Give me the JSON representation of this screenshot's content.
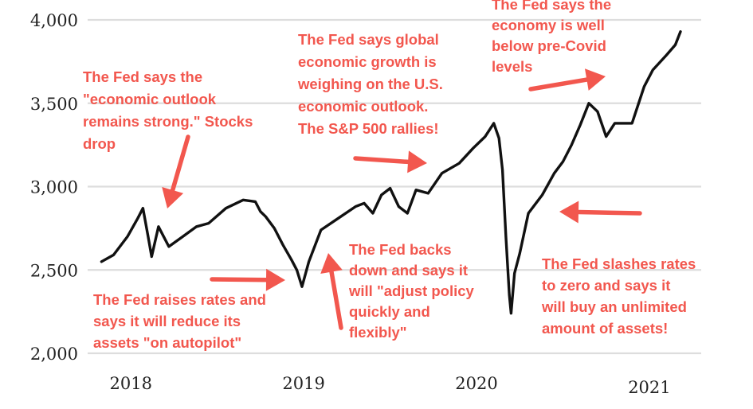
{
  "chart_data": {
    "type": "line",
    "title": "",
    "xlabel": "",
    "ylabel": "",
    "xlim": [
      2017.75,
      2021.3
    ],
    "ylim": [
      2000,
      4000
    ],
    "y_ticks": [
      2000,
      2500,
      3000,
      3500,
      4000
    ],
    "y_tick_labels": [
      "2,000",
      "2,500",
      "3,000",
      "3,500",
      "4,000"
    ],
    "x_ticks": [
      2018,
      2019,
      2020,
      2021
    ],
    "x_tick_labels": [
      "2018",
      "2019",
      "2020",
      "2021"
    ],
    "grid": true,
    "colors": {
      "line": "#111111",
      "annotation": "#f2574e",
      "grid": "#dddddd"
    },
    "series": [
      {
        "x": [
          2017.83,
          2017.9,
          2017.98,
          2018.04,
          2018.07,
          2018.1,
          2018.12,
          2018.16,
          2018.22,
          2018.3,
          2018.38,
          2018.45,
          2018.55,
          2018.65,
          2018.72,
          2018.75,
          2018.78,
          2018.83,
          2018.88,
          2018.93,
          2018.96,
          2018.99,
          2019.03,
          2019.1,
          2019.2,
          2019.3,
          2019.35,
          2019.4,
          2019.45,
          2019.5,
          2019.55,
          2019.6,
          2019.65,
          2019.72,
          2019.8,
          2019.9,
          2019.98,
          2020.05,
          2020.1,
          2020.13,
          2020.15,
          2020.17,
          2020.19,
          2020.2,
          2020.22,
          2020.25,
          2020.3,
          2020.38,
          2020.45,
          2020.5,
          2020.55,
          2020.6,
          2020.65,
          2020.7,
          2020.75,
          2020.8,
          2020.9,
          2020.97,
          2021.02,
          2021.1,
          2021.15,
          2021.18
        ],
        "y": [
          2550,
          2590,
          2700,
          2810,
          2870,
          2700,
          2580,
          2760,
          2640,
          2700,
          2760,
          2780,
          2870,
          2920,
          2910,
          2850,
          2820,
          2750,
          2650,
          2560,
          2500,
          2400,
          2550,
          2740,
          2810,
          2880,
          2900,
          2840,
          2950,
          2990,
          2880,
          2840,
          2980,
          2960,
          3080,
          3140,
          3230,
          3300,
          3380,
          3290,
          3100,
          2700,
          2350,
          2240,
          2480,
          2600,
          2840,
          2950,
          3080,
          3150,
          3250,
          3370,
          3500,
          3450,
          3300,
          3380,
          3380,
          3600,
          3700,
          3790,
          3850,
          3930
        ]
      }
    ],
    "annotations": [
      {
        "lines": [
          "The Fed says the",
          "\"economic outlook",
          "remains strong.\" Stocks",
          "drop"
        ]
      },
      {
        "lines": [
          "The Fed raises rates and",
          "says it will reduce its",
          "assets \"on autopilot\""
        ]
      },
      {
        "lines": [
          "The Fed backs",
          "down and says it",
          "will \"adjust policy",
          "quickly and",
          "flexibly\""
        ]
      },
      {
        "lines": [
          "The Fed says global",
          "economic growth is",
          "weighing on the U.S.",
          "economic outlook.",
          "The S&P 500  rallies!"
        ]
      },
      {
        "lines": [
          "The Fed says the",
          "economy is well",
          "below pre-Covid",
          "levels"
        ]
      },
      {
        "lines": [
          "The Fed slashes rates",
          "to zero and says it",
          "will buy an unlimited",
          "amount of assets!"
        ]
      }
    ]
  }
}
